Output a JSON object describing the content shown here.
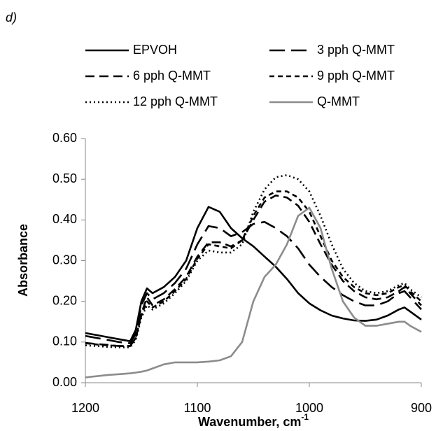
{
  "chart_data": {
    "type": "line",
    "panel_label": "d)",
    "x_label": "Wavenumber, cm",
    "x_label_superscript": "-1",
    "y_label": "Absorbance",
    "x": [
      1200,
      1190,
      1180,
      1170,
      1160,
      1155,
      1150,
      1145,
      1140,
      1130,
      1120,
      1110,
      1100,
      1090,
      1080,
      1070,
      1060,
      1050,
      1040,
      1030,
      1020,
      1010,
      1000,
      990,
      980,
      970,
      960,
      950,
      940,
      930,
      920,
      915,
      910,
      900
    ],
    "xlim": [
      1200,
      900
    ],
    "xticks": [
      1200,
      1100,
      1000,
      900
    ],
    "ylim": [
      0,
      0.6
    ],
    "yticks": [
      {
        "value": 0,
        "label": "0.00"
      },
      {
        "value": 0.1,
        "label": "0.10"
      },
      {
        "value": 0.2,
        "label": "0.20"
      },
      {
        "value": 0.3,
        "label": "0.30"
      },
      {
        "value": 0.4,
        "label": "0.40"
      },
      {
        "value": 0.5,
        "label": "0.50"
      },
      {
        "value": 0.6,
        "label": "0.60"
      }
    ],
    "legend": "top",
    "series": [
      {
        "name": "EPVOH",
        "color": "#000000",
        "dash": "solid",
        "values": [
          0.122,
          0.117,
          0.112,
          0.107,
          0.102,
          0.13,
          0.2,
          0.232,
          0.22,
          0.235,
          0.26,
          0.3,
          0.38,
          0.432,
          0.42,
          0.38,
          0.355,
          0.335,
          0.31,
          0.285,
          0.255,
          0.22,
          0.195,
          0.178,
          0.165,
          0.158,
          0.153,
          0.152,
          0.155,
          0.165,
          0.18,
          0.185,
          0.175,
          0.155
        ]
      },
      {
        "name": "3 pph Q-MMT",
        "color": "#000000",
        "dash": "long-dash",
        "values": [
          0.115,
          0.11,
          0.105,
          0.1,
          0.097,
          0.12,
          0.19,
          0.22,
          0.205,
          0.22,
          0.245,
          0.28,
          0.34,
          0.385,
          0.38,
          0.36,
          0.37,
          0.39,
          0.395,
          0.38,
          0.36,
          0.33,
          0.29,
          0.26,
          0.235,
          0.215,
          0.2,
          0.19,
          0.19,
          0.2,
          0.22,
          0.225,
          0.21,
          0.18
        ]
      },
      {
        "name": "6 pph Q-MMT",
        "color": "#000000",
        "dash": "dash",
        "values": [
          0.098,
          0.095,
          0.093,
          0.09,
          0.09,
          0.11,
          0.17,
          0.21,
          0.19,
          0.205,
          0.23,
          0.26,
          0.31,
          0.345,
          0.345,
          0.335,
          0.35,
          0.4,
          0.445,
          0.46,
          0.455,
          0.435,
          0.395,
          0.34,
          0.29,
          0.25,
          0.225,
          0.21,
          0.205,
          0.21,
          0.225,
          0.235,
          0.22,
          0.19
        ]
      },
      {
        "name": "9 pph Q-MMT",
        "color": "#000000",
        "dash": "short-dash",
        "values": [
          0.097,
          0.094,
          0.092,
          0.09,
          0.09,
          0.11,
          0.165,
          0.2,
          0.185,
          0.2,
          0.225,
          0.255,
          0.305,
          0.34,
          0.335,
          0.33,
          0.35,
          0.41,
          0.455,
          0.47,
          0.47,
          0.455,
          0.42,
          0.36,
          0.3,
          0.26,
          0.235,
          0.22,
          0.215,
          0.22,
          0.235,
          0.24,
          0.225,
          0.2
        ]
      },
      {
        "name": "12 pph Q-MMT",
        "color": "#000000",
        "dash": "dot",
        "values": [
          0.092,
          0.09,
          0.088,
          0.087,
          0.087,
          0.105,
          0.16,
          0.19,
          0.18,
          0.195,
          0.22,
          0.25,
          0.3,
          0.325,
          0.32,
          0.32,
          0.34,
          0.42,
          0.475,
          0.505,
          0.51,
          0.5,
          0.47,
          0.41,
          0.34,
          0.28,
          0.245,
          0.225,
          0.22,
          0.225,
          0.24,
          0.245,
          0.23,
          0.21
        ]
      },
      {
        "name": "Q-MMT",
        "color": "#8c8c8c",
        "dash": "solid",
        "values": [
          0.013,
          0.016,
          0.019,
          0.021,
          0.023,
          0.025,
          0.027,
          0.03,
          0.035,
          0.045,
          0.05,
          0.05,
          0.05,
          0.052,
          0.055,
          0.065,
          0.1,
          0.2,
          0.26,
          0.29,
          0.34,
          0.41,
          0.43,
          0.38,
          0.28,
          0.2,
          0.16,
          0.14,
          0.14,
          0.145,
          0.15,
          0.15,
          0.14,
          0.125
        ]
      }
    ]
  }
}
